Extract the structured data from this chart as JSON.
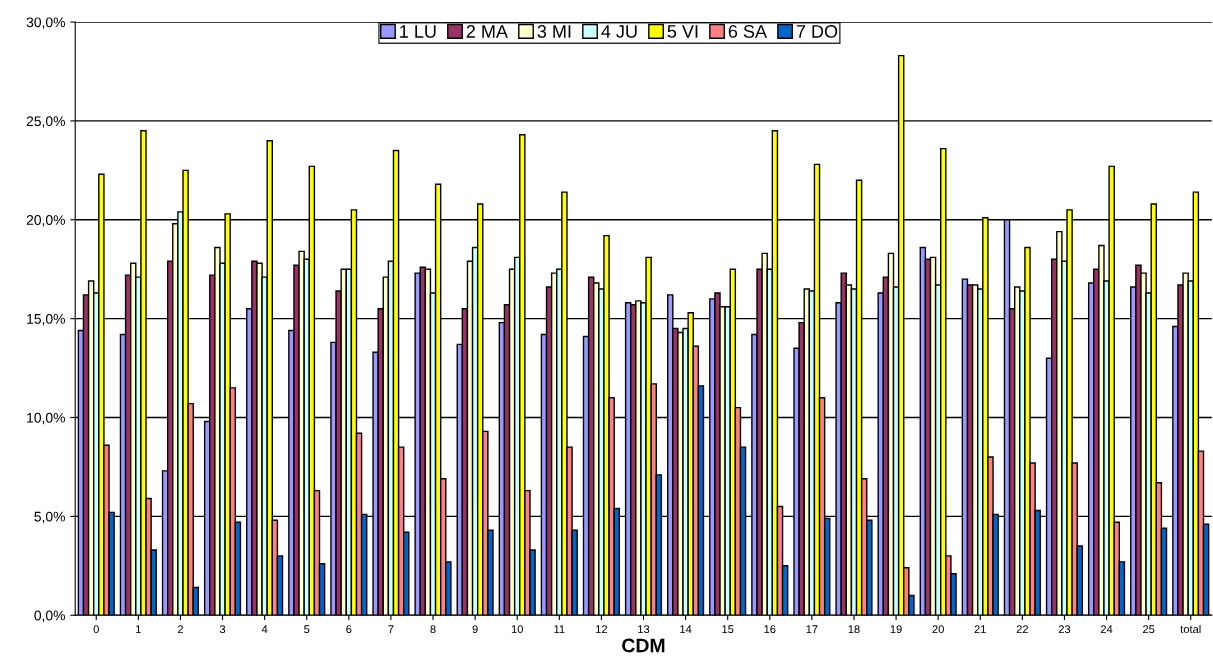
{
  "chart_data": {
    "type": "bar",
    "xlabel": "CDM",
    "categories": [
      "0",
      "1",
      "2",
      "3",
      "4",
      "5",
      "6",
      "7",
      "8",
      "9",
      "10",
      "11",
      "12",
      "13",
      "14",
      "15",
      "16",
      "17",
      "18",
      "19",
      "20",
      "21",
      "22",
      "23",
      "24",
      "25",
      "total"
    ],
    "series": [
      {
        "name": "1 LU",
        "color": "#9999ff",
        "values": [
          14.4,
          14.2,
          7.3,
          9.8,
          15.5,
          14.4,
          13.8,
          13.3,
          17.3,
          13.7,
          14.8,
          14.2,
          14.1,
          15.8,
          16.2,
          16.0,
          14.2,
          13.5,
          15.8,
          16.3,
          18.6,
          17.0,
          20.0,
          13.0,
          16.8,
          16.6,
          14.6
        ]
      },
      {
        "name": "2 MA",
        "color": "#993366",
        "values": [
          16.2,
          17.2,
          17.9,
          17.2,
          17.9,
          17.7,
          16.4,
          15.5,
          17.6,
          15.5,
          15.7,
          16.6,
          17.1,
          15.7,
          14.5,
          16.3,
          17.5,
          14.8,
          17.3,
          17.1,
          18.0,
          16.7,
          15.5,
          18.0,
          17.5,
          17.7,
          16.7
        ]
      },
      {
        "name": "3 MI",
        "color": "#ffffcc",
        "values": [
          16.9,
          17.8,
          19.8,
          18.6,
          17.8,
          18.4,
          17.5,
          17.1,
          17.5,
          17.9,
          17.5,
          17.3,
          16.8,
          15.9,
          14.3,
          15.6,
          18.3,
          16.5,
          16.7,
          18.3,
          18.1,
          16.7,
          16.6,
          19.4,
          18.7,
          17.3,
          17.3
        ]
      },
      {
        "name": "4 JU",
        "color": "#ccffff",
        "values": [
          16.3,
          17.1,
          20.4,
          17.8,
          17.1,
          18.0,
          17.5,
          17.9,
          16.3,
          18.6,
          18.1,
          17.5,
          16.5,
          15.8,
          14.5,
          15.6,
          17.5,
          16.4,
          16.5,
          16.6,
          16.7,
          16.5,
          16.4,
          17.9,
          16.9,
          16.3,
          16.9
        ]
      },
      {
        "name": "5 VI",
        "color": "#ffff00",
        "values": [
          22.3,
          24.5,
          22.5,
          20.3,
          24.0,
          22.7,
          20.5,
          23.5,
          21.8,
          20.8,
          24.3,
          21.4,
          19.2,
          18.1,
          15.3,
          17.5,
          24.5,
          22.8,
          22.0,
          28.3,
          23.6,
          20.1,
          18.6,
          20.5,
          22.7,
          20.8,
          21.4
        ]
      },
      {
        "name": "6 SA",
        "color": "#ff8080",
        "values": [
          8.6,
          5.9,
          10.7,
          11.5,
          4.8,
          6.3,
          9.2,
          8.5,
          6.9,
          9.3,
          6.3,
          8.5,
          11.0,
          11.7,
          13.6,
          10.5,
          5.5,
          11.0,
          6.9,
          2.4,
          3.0,
          8.0,
          7.7,
          7.7,
          4.7,
          6.7,
          8.3
        ]
      },
      {
        "name": "7 DO",
        "color": "#0066cc",
        "values": [
          5.2,
          3.3,
          1.4,
          4.7,
          3.0,
          2.6,
          5.1,
          4.2,
          2.7,
          4.3,
          3.3,
          4.3,
          5.4,
          7.1,
          11.6,
          8.5,
          2.5,
          4.9,
          4.8,
          1.0,
          2.1,
          5.1,
          5.3,
          3.5,
          2.7,
          4.4,
          4.6
        ]
      }
    ],
    "ylim": [
      0,
      30
    ],
    "yticks": [
      {
        "value": 0,
        "label": "0,0%"
      },
      {
        "value": 5,
        "label": "5,0%"
      },
      {
        "value": 10,
        "label": "10,0%"
      },
      {
        "value": 15,
        "label": "15,0%"
      },
      {
        "value": 20,
        "label": "20,0%"
      },
      {
        "value": 25,
        "label": "25,0%"
      },
      {
        "value": 30,
        "label": "30,0%"
      }
    ],
    "grid": "y",
    "legend": "top"
  }
}
